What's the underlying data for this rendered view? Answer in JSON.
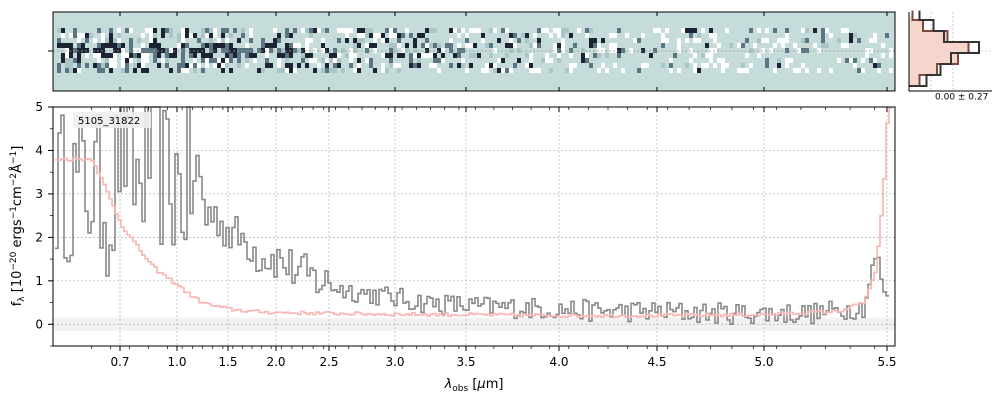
{
  "chart_data": [
    {
      "type": "heatmap",
      "panel": "2d-spectrum",
      "description_colormap": [
        "#1c2433",
        "#5b7583",
        "#a9c5c6",
        "#c5dcdb",
        "#ffffff"
      ],
      "background_color": "#c5dcdb",
      "xlim": [
        0.52,
        5.52
      ],
      "ylim": [
        -1,
        1
      ]
    },
    {
      "type": "histogram",
      "panel": "residual-histogram",
      "annotation": "0.00 ± 0.27",
      "bins_y": [
        -0.6,
        -0.4,
        -0.2,
        0.0,
        0.2,
        0.4,
        0.6
      ],
      "counts_data": [
        0.25,
        0.45,
        0.6,
        1.0,
        0.5,
        0.35,
        0.15
      ],
      "counts_model": [
        0.15,
        0.4,
        0.7,
        0.85,
        0.55,
        0.2,
        0.05
      ]
    },
    {
      "type": "line",
      "panel": "1d-spectrum",
      "annotation": "5105_31822",
      "ylabel": "f_λ [10^-20 ergs^-1 cm^-2 Å^-1]",
      "ylabel_parts": {
        "f": "f",
        "sub": "λ",
        "pre": " [10",
        "exp1": "−20",
        "mid1": " ergs",
        "exp2": "−1",
        "mid2": "cm",
        "exp3": "−2",
        "mid3": "Å",
        "exp4": "−1",
        "post": "]"
      },
      "xlabel_parts": {
        "lambda": "λ",
        "sub": "obs",
        "post": " [μm]",
        "mu": "μ"
      },
      "xlim": [
        0.52,
        5.52
      ],
      "ylim": [
        -0.5,
        5
      ],
      "grid": true,
      "x_ticks": [
        0.7,
        1.0,
        1.5,
        2.0,
        2.5,
        3.0,
        3.5,
        4.0,
        4.5,
        5.0,
        5.5
      ],
      "x_tick_labels": [
        "0.7",
        "1.0",
        "1.5",
        "2.0",
        "2.5",
        "3.0",
        "3.5",
        "4.0",
        "4.5",
        "5.0",
        "5.5"
      ],
      "y_ticks": [
        0,
        1,
        2,
        3,
        4,
        5
      ],
      "y_tick_labels": [
        "0",
        "1",
        "2",
        "3",
        "4",
        "5"
      ],
      "series": [
        {
          "role": "data",
          "color": "#888888",
          "x": [
            0.55,
            0.6,
            0.65,
            0.7,
            0.75,
            0.8,
            0.85,
            0.9,
            0.95,
            1.0,
            1.05,
            1.1,
            1.2,
            1.3,
            1.4,
            1.5,
            1.6,
            1.7,
            1.8,
            2.0,
            2.2,
            2.4,
            2.6,
            2.8,
            3.0,
            3.2,
            3.4,
            3.6,
            3.8,
            4.0,
            4.2,
            4.4,
            4.6,
            4.8,
            5.0,
            5.2,
            5.4,
            5.45,
            5.5
          ],
          "y": [
            3.2,
            3.0,
            2.6,
            4.5,
            3.6,
            3.2,
            4.0,
            3.5,
            3.3,
            3.2,
            3.0,
            3.3,
            3.1,
            2.6,
            2.4,
            2.1,
            2.0,
            1.9,
            1.6,
            1.5,
            1.2,
            1.0,
            0.8,
            0.7,
            0.6,
            0.5,
            0.45,
            0.4,
            0.38,
            0.35,
            0.3,
            0.3,
            0.28,
            0.25,
            0.25,
            0.25,
            0.4,
            1.6,
            0.4
          ]
        },
        {
          "role": "model",
          "color": "#f7b6b2",
          "x": [
            0.55,
            0.6,
            0.65,
            0.7,
            0.75,
            0.8,
            0.85,
            0.9,
            1.0,
            1.1,
            1.2,
            1.3,
            1.5,
            1.7,
            2.0,
            2.5,
            3.0,
            3.5,
            4.0,
            4.5,
            5.0,
            5.3,
            5.4,
            5.45,
            5.48,
            5.5
          ],
          "y": [
            3.8,
            3.3,
            2.8,
            2.3,
            2.0,
            1.7,
            1.4,
            1.2,
            0.9,
            0.7,
            0.55,
            0.45,
            0.35,
            0.3,
            0.27,
            0.25,
            0.23,
            0.22,
            0.2,
            0.2,
            0.22,
            0.3,
            0.5,
            1.2,
            3.0,
            5.0
          ]
        }
      ],
      "noise_band": [
        0.55,
        5.52
      ],
      "zero_band_color": "#f2f2f2"
    }
  ]
}
